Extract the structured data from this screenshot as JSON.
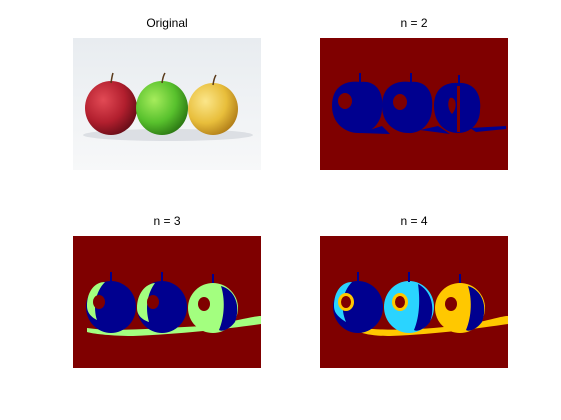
{
  "panels": [
    {
      "id": "original",
      "title": "Original"
    },
    {
      "id": "n2",
      "title": "n = 2"
    },
    {
      "id": "n3",
      "title": "n = 3"
    },
    {
      "id": "n4",
      "title": "n = 4"
    }
  ],
  "watermark": "",
  "colors": {
    "background": "#7f0000",
    "cluster_dark_blue": "#00008f",
    "cluster_light_green": "#a3ff7f",
    "cluster_cyan": "#2ad4ff",
    "cluster_yellow": "#ffc800",
    "apple_red": "#b21f2e",
    "apple_green": "#58c12d",
    "apple_yellow": "#e8be3b"
  }
}
